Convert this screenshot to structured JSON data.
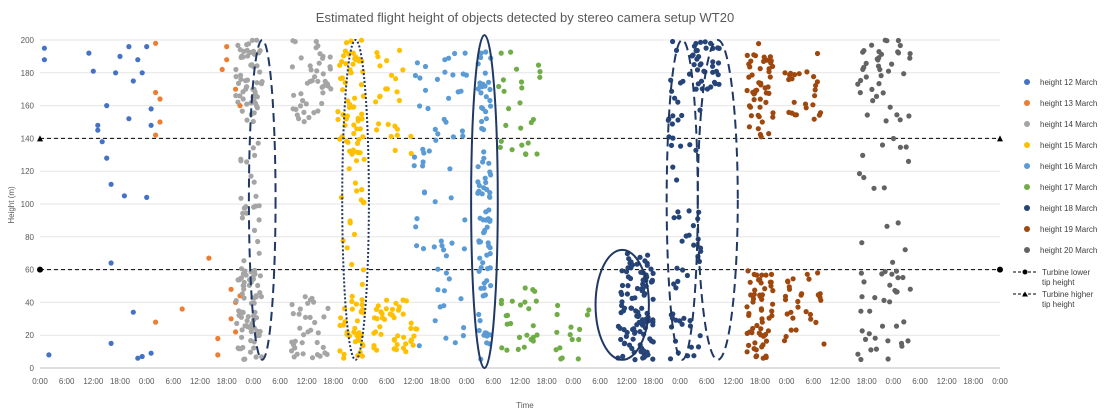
{
  "chart_data": {
    "type": "scatter",
    "title": "Estimated flight height of objects detected by stereo camera setup WT20",
    "xlabel": "Time",
    "ylabel": "Height (m)",
    "ylim": [
      0,
      200
    ],
    "yticks": [
      "0",
      "20",
      "40",
      "60",
      "80",
      "100",
      "120",
      "140",
      "160",
      "180",
      "200"
    ],
    "xlim_hours": [
      0,
      216
    ],
    "xticks": [
      "0:00",
      "6:00",
      "12:00",
      "18:00",
      "0:00",
      "6:00",
      "12:00",
      "18:00",
      "0:00",
      "6:00",
      "12:00",
      "18:00",
      "0:00",
      "6:00",
      "12:00",
      "18:00",
      "0:00",
      "6:00",
      "12:00",
      "18:00",
      "0:00",
      "6:00",
      "12:00",
      "18:00",
      "0:00",
      "6:00",
      "12:00",
      "18:00",
      "0:00",
      "6:00",
      "12:00",
      "18:00",
      "0:00",
      "6:00",
      "12:00",
      "18:00",
      "0:00"
    ],
    "grid": "horizontal",
    "legend_position": "right",
    "reference_lines": [
      {
        "name": "Turbine lower tip height",
        "y": 60,
        "marker": "circle",
        "color": "#000000"
      },
      {
        "name": "Turbine higher tip height",
        "y": 140,
        "marker": "triangle",
        "color": "#000000"
      }
    ],
    "series": [
      {
        "name": "height 12 March",
        "color": "#4472C4",
        "center_hour": 15,
        "spread_hours": 9,
        "points": [
          [
            1,
            195
          ],
          [
            1,
            188
          ],
          [
            2,
            8
          ],
          [
            11,
            192
          ],
          [
            12,
            181
          ],
          [
            13,
            145
          ],
          [
            13,
            148
          ],
          [
            14,
            138
          ],
          [
            15,
            128
          ],
          [
            15,
            160
          ],
          [
            16,
            112
          ],
          [
            16,
            15
          ],
          [
            16,
            64
          ],
          [
            17,
            180
          ],
          [
            18,
            190
          ],
          [
            19,
            105
          ],
          [
            20,
            196
          ],
          [
            20,
            152
          ],
          [
            21,
            175
          ],
          [
            21,
            34
          ],
          [
            22,
            188
          ],
          [
            22,
            6
          ],
          [
            23,
            180
          ],
          [
            23,
            7
          ],
          [
            24,
            196
          ],
          [
            24,
            104
          ],
          [
            25,
            158
          ],
          [
            25,
            148
          ],
          [
            25,
            9
          ]
        ]
      },
      {
        "name": "height 13 March",
        "color": "#ED7D31",
        "center_hour": 40,
        "spread_hours": 10,
        "points": [
          [
            26,
            198
          ],
          [
            26,
            168
          ],
          [
            27,
            164
          ],
          [
            27,
            150
          ],
          [
            26,
            142
          ],
          [
            26,
            28
          ],
          [
            32,
            36
          ],
          [
            38,
            67
          ],
          [
            40,
            18
          ],
          [
            40,
            8
          ],
          [
            41,
            182
          ],
          [
            42,
            188
          ],
          [
            42,
            196
          ],
          [
            43,
            30
          ],
          [
            43,
            48
          ],
          [
            44,
            40
          ],
          [
            44,
            22
          ],
          [
            44,
            170
          ],
          [
            45,
            160
          ],
          [
            45,
            44
          ]
        ]
      },
      {
        "name": "height 14 March",
        "color": "#A5A5A5",
        "center_hour": 55,
        "spread_hours": 12,
        "dense_clusters": [
          [
            47,
            6,
            150,
            200,
            60
          ],
          [
            47,
            6,
            5,
            60,
            70
          ],
          [
            61,
            9,
            150,
            200,
            45
          ],
          [
            61,
            9,
            5,
            45,
            35
          ],
          [
            47,
            5,
            60,
            140,
            25
          ]
        ]
      },
      {
        "name": "height 15 March",
        "color": "#FFC000",
        "center_hour": 75,
        "spread_hours": 13,
        "dense_clusters": [
          [
            70,
            6,
            130,
            200,
            60
          ],
          [
            70,
            6,
            50,
            130,
            18
          ],
          [
            70,
            6,
            5,
            45,
            35
          ],
          [
            80,
            9,
            130,
            198,
            25
          ],
          [
            80,
            10,
            10,
            45,
            45
          ]
        ]
      },
      {
        "name": "height 16 March",
        "color": "#5B9BD5",
        "center_hour": 99,
        "spread_hours": 13,
        "dense_clusters": [
          [
            90,
            12,
            120,
            195,
            35
          ],
          [
            90,
            12,
            10,
            110,
            30
          ],
          [
            100,
            3,
            5,
            200,
            90
          ]
        ]
      },
      {
        "name": "height 17 March",
        "color": "#70AD47",
        "center_hour": 119,
        "spread_hours": 11,
        "dense_clusters": [
          [
            108,
            10,
            130,
            198,
            25
          ],
          [
            108,
            9,
            10,
            50,
            25
          ],
          [
            120,
            8,
            5,
            40,
            15
          ]
        ]
      },
      {
        "name": "height 18 March",
        "color": "#264478",
        "center_hour": 147,
        "spread_hours": 14,
        "dense_clusters": [
          [
            134,
            8,
            5,
            70,
            110
          ],
          [
            145,
            8,
            5,
            200,
            70
          ],
          [
            150,
            6,
            170,
            200,
            30
          ]
        ]
      },
      {
        "name": "height 19 March",
        "color": "#9E480E",
        "center_hour": 170,
        "spread_hours": 12,
        "dense_clusters": [
          [
            162,
            6,
            5,
            60,
            60
          ],
          [
            162,
            6,
            140,
            198,
            50
          ],
          [
            172,
            9,
            10,
            60,
            30
          ],
          [
            172,
            9,
            150,
            198,
            25
          ]
        ]
      },
      {
        "name": "height 20 March",
        "color": "#636363",
        "center_hour": 195,
        "spread_hours": 14,
        "dense_clusters": [
          [
            190,
            12,
            150,
            200,
            40
          ],
          [
            190,
            12,
            5,
            60,
            35
          ],
          [
            190,
            12,
            60,
            140,
            15
          ]
        ]
      }
    ],
    "annotations": [
      {
        "type": "ellipse",
        "style": "dashed",
        "x_range": [
          47,
          53
        ],
        "y_range": [
          5,
          200
        ]
      },
      {
        "type": "ellipse",
        "style": "dotted",
        "x_range": [
          68,
          74
        ],
        "y_range": [
          5,
          200
        ]
      },
      {
        "type": "ellipse",
        "style": "solid",
        "x_range": [
          97,
          103
        ],
        "y_range": [
          0,
          203
        ]
      },
      {
        "type": "ellipse",
        "style": "solid",
        "x_range": [
          125,
          137
        ],
        "y_range": [
          5,
          72
        ]
      },
      {
        "type": "ellipse",
        "style": "dashed",
        "x_range": [
          141,
          148
        ],
        "y_range": [
          5,
          200
        ]
      },
      {
        "type": "ellipse",
        "style": "dashed",
        "x_range": [
          148,
          157
        ],
        "y_range": [
          5,
          200
        ]
      }
    ]
  }
}
